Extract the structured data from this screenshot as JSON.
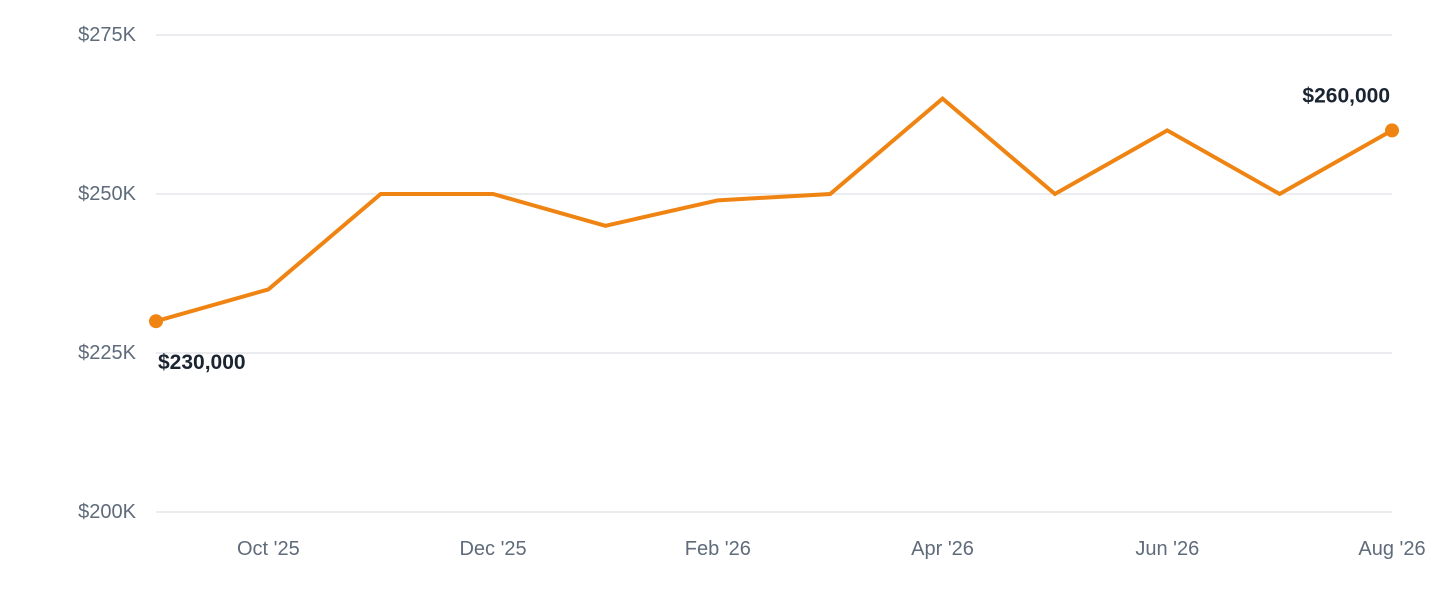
{
  "chart_data": {
    "type": "line",
    "title": "",
    "xlabel": "",
    "ylabel": "",
    "x": [
      "2025-09",
      "2025-10",
      "2025-11",
      "2025-12",
      "2026-01",
      "2026-02",
      "2026-03",
      "2026-04",
      "2026-05",
      "2026-06",
      "2026-07",
      "2026-08"
    ],
    "series": [
      {
        "values": [
          230000,
          235000,
          250000,
          250000,
          245000,
          249000,
          250000,
          265000,
          250000,
          260000,
          250000,
          260000
        ],
        "color": "#ef8412"
      }
    ],
    "ylim": [
      200000,
      275000
    ],
    "y_ticks": [
      {
        "value": 275000,
        "label": "$275K"
      },
      {
        "value": 250000,
        "label": "$250K"
      },
      {
        "value": 225000,
        "label": "$225K"
      },
      {
        "value": 200000,
        "label": "$200K"
      }
    ],
    "x_ticks": [
      {
        "value": "2025-10",
        "label": "Oct '25"
      },
      {
        "value": "2025-12",
        "label": "Dec '25"
      },
      {
        "value": "2026-02",
        "label": "Feb '26"
      },
      {
        "value": "2026-04",
        "label": "Apr '26"
      },
      {
        "value": "2026-06",
        "label": "Jun '26"
      },
      {
        "value": "2026-08",
        "label": "Aug '26"
      }
    ],
    "annotations": [
      {
        "x": "2025-09",
        "y": 230000,
        "label": "$230,000",
        "position": "below-right"
      },
      {
        "x": "2026-08",
        "y": 260000,
        "label": "$260,000",
        "position": "above-left"
      }
    ],
    "grid": true,
    "legend": "none",
    "line_color": "#ef8412",
    "grid_color": "#e3e6ea",
    "tick_color": "#5f6b7a",
    "label_color": "#1b2532"
  }
}
